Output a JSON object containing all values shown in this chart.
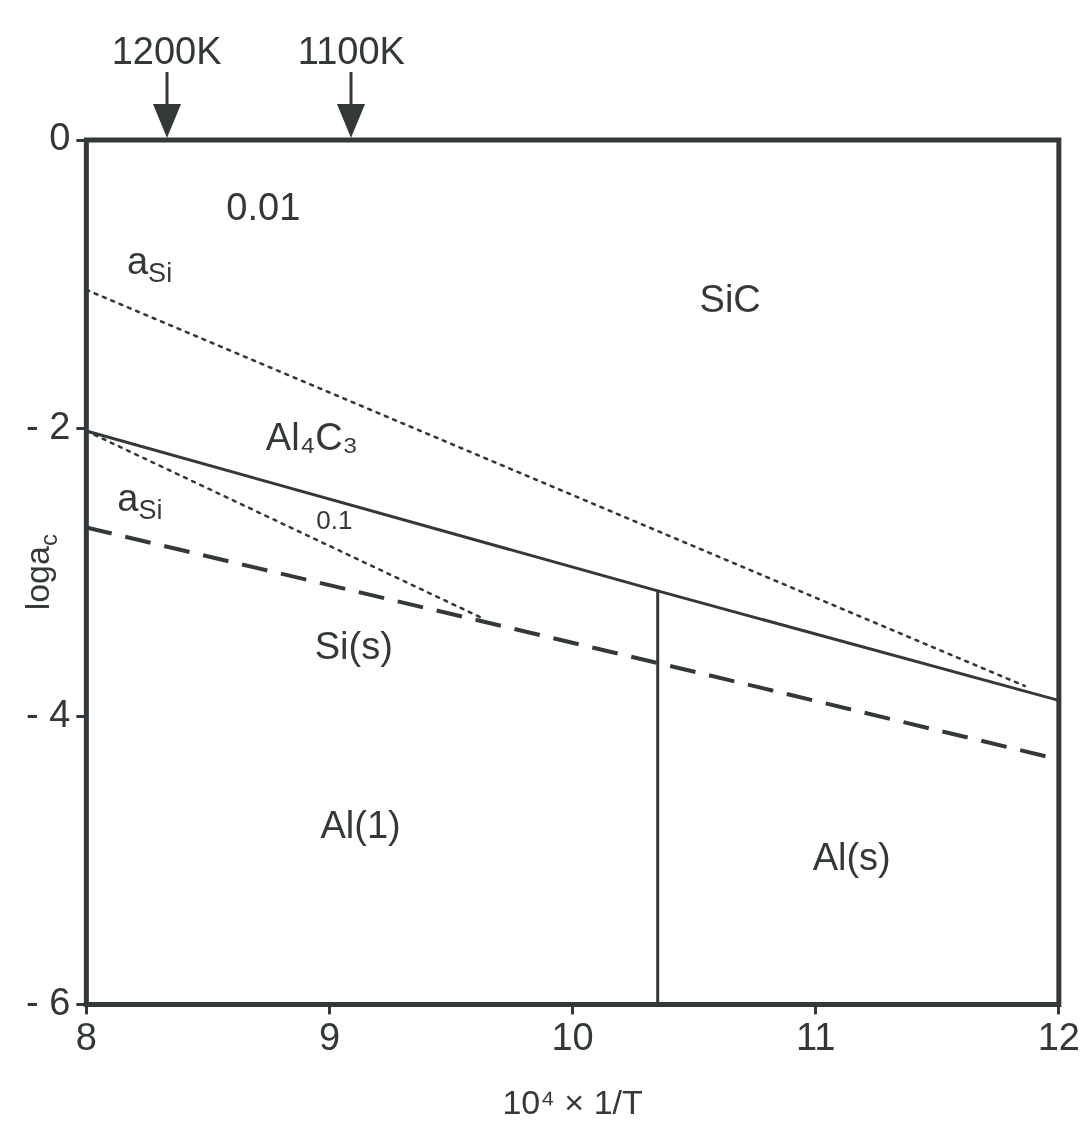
{
  "chart_data": {
    "type": "line",
    "xlabel": "10⁴ × 1/T",
    "ylabel": "loga$_{c}$",
    "xlim": [
      8,
      12
    ],
    "ylim": [
      -6,
      0
    ],
    "xticks": [
      8,
      9,
      10,
      11,
      12
    ],
    "yticks": [
      0,
      {
        "value": -2,
        "label": "- 2"
      },
      {
        "value": -4,
        "label": "- 4"
      },
      {
        "value": -6,
        "label": "- 6"
      }
    ],
    "legend": false,
    "marker": "none",
    "series": [
      {
        "type": "line",
        "color": "#333a36",
        "line_style": "solid",
        "x": [
          8,
          10.35,
          12
        ],
        "values": [
          -2.02,
          -3.13,
          -3.89
        ]
      },
      {
        "type": "line",
        "color": "#333a36",
        "line_style": "dashed",
        "x": [
          8,
          10.35,
          12
        ],
        "values": [
          -2.69,
          -3.63,
          -4.3
        ]
      },
      {
        "type": "line",
        "color": "#333a36",
        "line_style": "dotted",
        "x": [
          8,
          11.86
        ],
        "values": [
          -1.04,
          -3.79
        ]
      },
      {
        "type": "line",
        "color": "#333a36",
        "line_style": "dotted",
        "x": [
          8,
          9.63
        ],
        "values": [
          -2.02,
          -3.32
        ]
      },
      {
        "type": "line",
        "color": "#333a36",
        "line_style": "solid",
        "x": [
          10.35,
          10.35
        ],
        "values": [
          -3.13,
          -6
        ]
      }
    ],
    "annotations": [
      "1200K",
      "1100K",
      "0.01",
      "a$_{Si}$",
      "SiC",
      "Al₄C₃",
      "a$_{Si}$",
      "0.1",
      "Si(s)",
      "Al(1)",
      "Al(s)"
    ]
  }
}
